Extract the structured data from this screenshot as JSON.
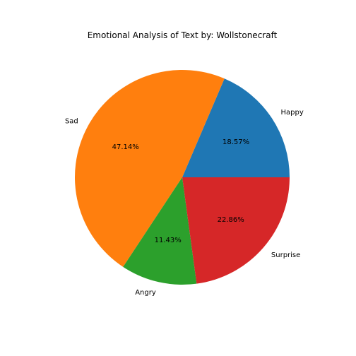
{
  "chart_data": {
    "type": "pie",
    "title": "Emotional Analysis of Text by: Wollstonecraft",
    "categories": [
      "Happy",
      "Sad",
      "Angry",
      "Surprise"
    ],
    "values": [
      18.57,
      47.14,
      11.43,
      22.86
    ],
    "value_labels": [
      "18.57%",
      "47.14%",
      "11.43%",
      "22.86%"
    ],
    "colors": [
      "#1f77b4",
      "#ff7f0e",
      "#2ca02c",
      "#d62728"
    ],
    "start_angle_deg": 0,
    "direction": "counterclockwise",
    "legend": "none"
  }
}
